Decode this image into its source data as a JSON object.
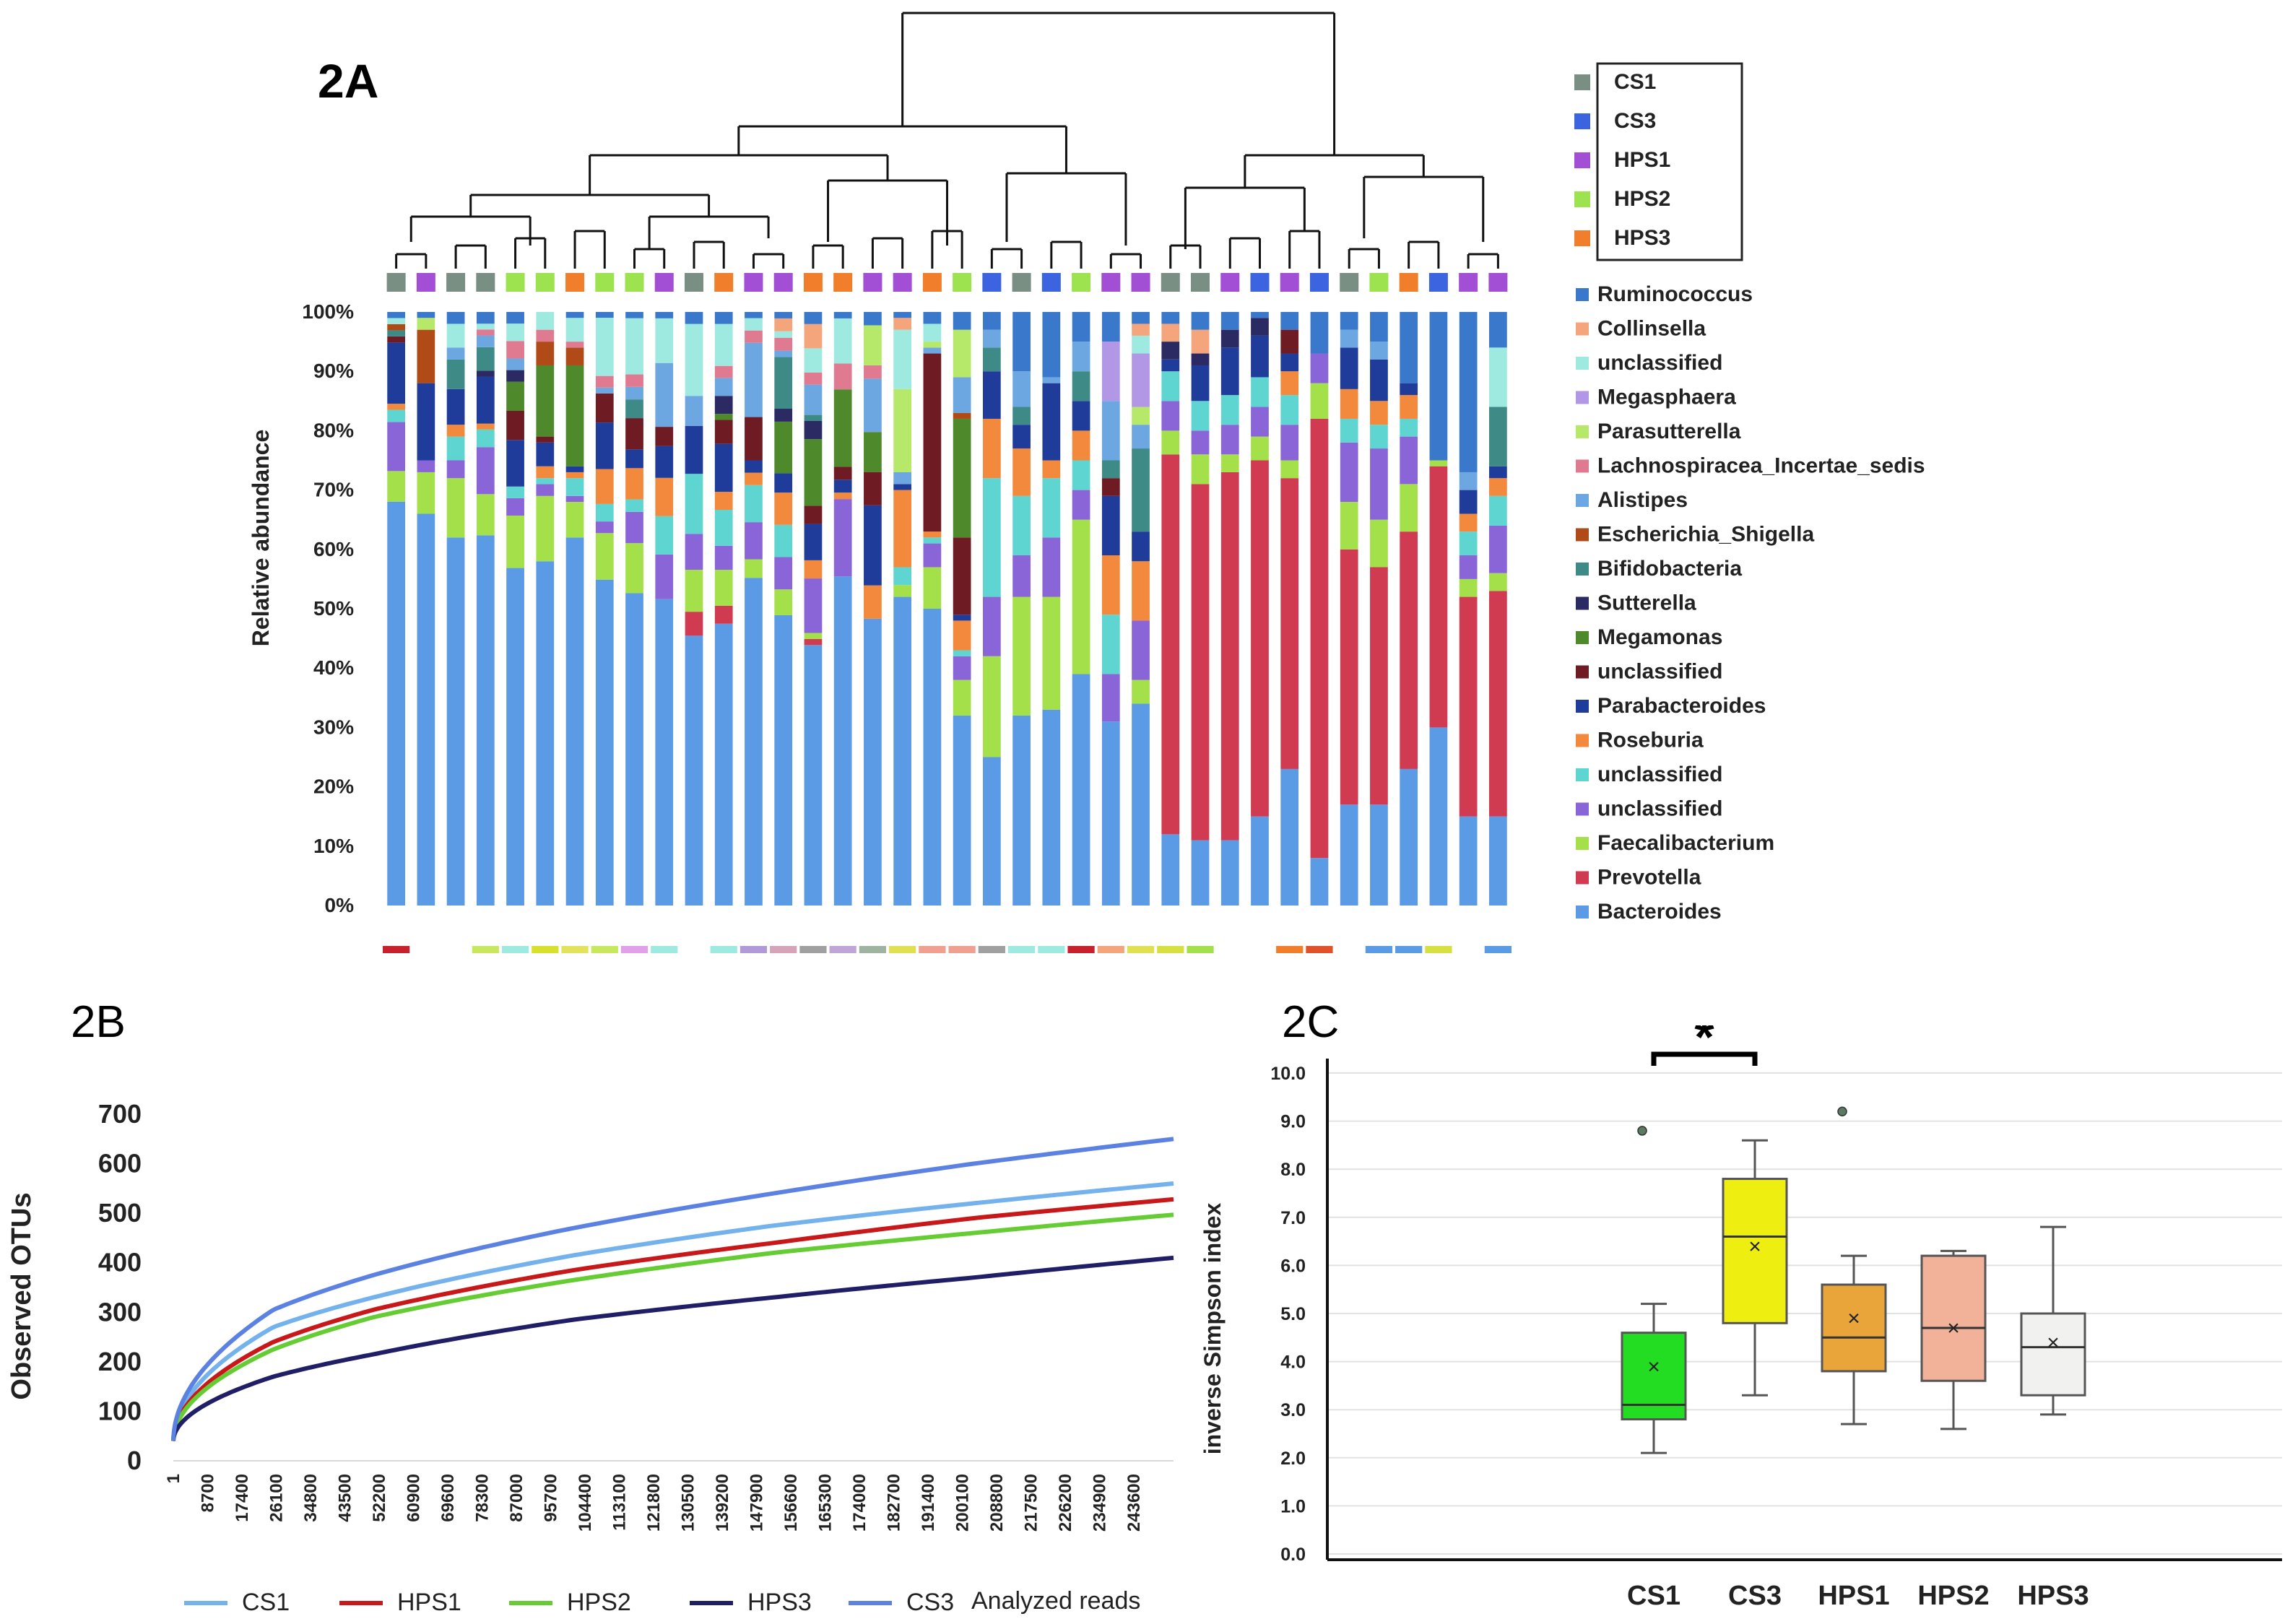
{
  "panels": {
    "a": "2A",
    "b": "2B",
    "c": "2C"
  },
  "chart_data": [
    {
      "type": "bar",
      "stacked": true,
      "title": "2A",
      "ylabel": "Relative abundance",
      "yticks": [
        "0%",
        "10%",
        "20%",
        "30%",
        "40%",
        "50%",
        "60%",
        "70%",
        "80%",
        "90%",
        "100%"
      ],
      "ylim": [
        0,
        100
      ],
      "groups": [
        {
          "name": "CS1",
          "color": "#7a8f83"
        },
        {
          "name": "CS3",
          "color": "#3c64e0"
        },
        {
          "name": "HPS1",
          "color": "#a24fd6"
        },
        {
          "name": "HPS2",
          "color": "#9de24f"
        },
        {
          "name": "HPS3",
          "color": "#f07e2a"
        }
      ],
      "taxa": [
        {
          "name": "Bacteroides",
          "color": "#5b9be6"
        },
        {
          "name": "Prevotella",
          "color": "#d03b52"
        },
        {
          "name": "Faecalibacterium",
          "color": "#a4e04a"
        },
        {
          "name": "unclassified",
          "color": "#8a65d8"
        },
        {
          "name": "unclassified",
          "color": "#5fd5d2"
        },
        {
          "name": "Roseburia",
          "color": "#f2893c"
        },
        {
          "name": "Parabacteroides",
          "color": "#1f3c9a"
        },
        {
          "name": "unclassified",
          "color": "#6e1b24"
        },
        {
          "name": "Megamonas",
          "color": "#4e8a2b"
        },
        {
          "name": "Sutterella",
          "color": "#2b2a63"
        },
        {
          "name": "Bifidobacteria",
          "color": "#3d8a86"
        },
        {
          "name": "Escherichia_Shigella",
          "color": "#b04a16"
        },
        {
          "name": "Alistipes",
          "color": "#6ca7e2"
        },
        {
          "name": "Lachnospiracea_Incertae_sedis",
          "color": "#e07a90"
        },
        {
          "name": "Parasutterella",
          "color": "#b6e86a"
        },
        {
          "name": "Megasphaera",
          "color": "#b197e6"
        },
        {
          "name": "unclassified",
          "color": "#9ee9e0"
        },
        {
          "name": "Collinsella",
          "color": "#f5a57c"
        },
        {
          "name": "Ruminococcus",
          "color": "#3a78cc"
        }
      ],
      "sample_groups": [
        0,
        2,
        0,
        0,
        3,
        3,
        4,
        3,
        3,
        2,
        0,
        4,
        2,
        2,
        4,
        4,
        2,
        2,
        4,
        3,
        1,
        0,
        1,
        3,
        2,
        2,
        0,
        0,
        2,
        1,
        2,
        1,
        0,
        3,
        4,
        1,
        2,
        2
      ],
      "sample_values": [
        [
          66,
          0,
          5,
          8,
          2,
          1,
          10,
          1,
          0,
          0,
          1,
          1,
          0,
          0,
          0,
          0,
          1,
          0,
          1
        ],
        [
          66,
          0,
          7,
          2,
          0,
          0,
          13,
          0,
          0,
          0,
          0,
          9,
          0,
          0,
          2,
          0,
          0,
          0,
          1
        ],
        [
          62,
          0,
          10,
          3,
          4,
          2,
          6,
          0,
          0,
          0,
          5,
          0,
          2,
          0,
          0,
          0,
          4,
          0,
          2
        ],
        [
          63,
          0,
          7,
          8,
          3,
          1,
          8,
          0,
          0,
          1,
          4,
          0,
          2,
          1,
          0,
          0,
          1,
          0,
          2
        ],
        [
          58,
          0,
          9,
          3,
          2,
          0,
          8,
          5,
          5,
          2,
          0,
          0,
          2,
          3,
          0,
          0,
          3,
          0,
          2
        ],
        [
          58,
          0,
          11,
          2,
          1,
          2,
          4,
          1,
          12,
          0,
          0,
          4,
          0,
          2,
          0,
          0,
          3,
          0,
          0
        ],
        [
          62,
          0,
          6,
          1,
          3,
          1,
          1,
          0,
          17,
          0,
          0,
          3,
          0,
          1,
          0,
          0,
          4,
          0,
          1
        ],
        [
          56,
          0,
          8,
          2,
          3,
          6,
          8,
          5,
          0,
          0,
          0,
          0,
          1,
          2,
          0,
          0,
          10,
          0,
          1
        ],
        [
          50,
          0,
          8,
          5,
          2,
          5,
          3,
          5,
          0,
          0,
          3,
          0,
          2,
          2,
          0,
          0,
          9,
          0,
          1
        ],
        [
          48,
          0,
          0,
          7,
          6,
          6,
          5,
          3,
          0,
          0,
          0,
          0,
          10,
          0,
          0,
          0,
          7,
          0,
          1
        ],
        [
          45,
          4,
          7,
          6,
          10,
          0,
          8,
          0,
          0,
          0,
          0,
          0,
          5,
          0,
          0,
          0,
          12,
          0,
          2
        ],
        [
          47,
          3,
          6,
          4,
          6,
          3,
          8,
          4,
          1,
          3,
          0,
          0,
          3,
          2,
          0,
          0,
          7,
          0,
          2
        ],
        [
          53,
          0,
          3,
          6,
          6,
          2,
          2,
          7,
          0,
          0,
          0,
          0,
          12,
          2,
          0,
          0,
          2,
          0,
          1
        ],
        [
          45,
          0,
          4,
          5,
          5,
          5,
          3,
          0,
          8,
          2,
          8,
          0,
          1,
          2,
          0,
          0,
          1,
          2,
          1
        ],
        [
          43,
          1,
          1,
          9,
          0,
          3,
          6,
          3,
          11,
          3,
          1,
          0,
          5,
          2,
          0,
          0,
          4,
          4,
          2
        ],
        [
          51,
          0,
          0,
          12,
          0,
          1,
          2,
          2,
          12,
          0,
          0,
          0,
          0,
          4,
          0,
          0,
          7,
          0,
          1
        ],
        [
          43,
          0,
          0,
          0,
          0,
          5,
          12,
          5,
          6,
          0,
          0,
          0,
          8,
          2,
          6,
          0,
          0,
          0,
          2
        ],
        [
          52,
          0,
          2,
          0,
          3,
          13,
          1,
          0,
          0,
          0,
          0,
          0,
          2,
          0,
          14,
          0,
          10,
          2,
          1
        ],
        [
          50,
          0,
          7,
          4,
          1,
          1,
          0,
          30,
          0,
          0,
          0,
          0,
          1,
          0,
          1,
          0,
          3,
          0,
          2
        ],
        [
          32,
          0,
          6,
          4,
          1,
          5,
          1,
          13,
          20,
          0,
          0,
          1,
          6,
          0,
          8,
          0,
          0,
          0,
          3
        ],
        [
          25,
          0,
          17,
          10,
          20,
          10,
          8,
          0,
          0,
          0,
          4,
          0,
          3,
          0,
          0,
          0,
          0,
          0,
          3
        ],
        [
          32,
          0,
          20,
          7,
          10,
          8,
          4,
          0,
          0,
          0,
          3,
          0,
          6,
          0,
          0,
          0,
          0,
          0,
          10
        ],
        [
          33,
          0,
          19,
          10,
          10,
          3,
          13,
          0,
          0,
          0,
          0,
          0,
          1,
          0,
          0,
          0,
          0,
          0,
          11
        ],
        [
          39,
          0,
          26,
          5,
          5,
          5,
          5,
          0,
          0,
          0,
          5,
          0,
          5,
          0,
          0,
          0,
          0,
          0,
          5
        ],
        [
          31,
          0,
          0,
          8,
          10,
          10,
          10,
          3,
          0,
          0,
          3,
          0,
          10,
          0,
          0,
          10,
          0,
          0,
          5
        ],
        [
          34,
          0,
          4,
          10,
          0,
          10,
          5,
          0,
          0,
          0,
          14,
          0,
          4,
          0,
          3,
          9,
          3,
          2,
          2
        ],
        [
          12,
          64,
          4,
          5,
          5,
          0,
          2,
          0,
          0,
          3,
          0,
          0,
          0,
          0,
          0,
          0,
          0,
          3,
          2
        ],
        [
          11,
          60,
          5,
          4,
          5,
          0,
          6,
          0,
          0,
          2,
          0,
          0,
          0,
          0,
          0,
          0,
          0,
          4,
          3
        ],
        [
          11,
          62,
          3,
          5,
          5,
          0,
          8,
          0,
          0,
          3,
          0,
          0,
          0,
          0,
          0,
          0,
          0,
          0,
          3
        ],
        [
          15,
          60,
          4,
          5,
          5,
          0,
          7,
          0,
          0,
          3,
          0,
          0,
          0,
          0,
          0,
          0,
          0,
          0,
          1
        ],
        [
          23,
          49,
          3,
          6,
          5,
          4,
          3,
          4,
          0,
          0,
          0,
          0,
          0,
          0,
          0,
          0,
          0,
          0,
          3
        ],
        [
          8,
          74,
          6,
          5,
          0,
          0,
          0,
          0,
          0,
          0,
          0,
          0,
          0,
          0,
          0,
          0,
          0,
          0,
          7
        ],
        [
          17,
          43,
          8,
          10,
          4,
          5,
          7,
          0,
          0,
          0,
          0,
          0,
          3,
          0,
          0,
          0,
          0,
          0,
          3
        ],
        [
          17,
          40,
          8,
          12,
          4,
          4,
          7,
          0,
          0,
          0,
          0,
          0,
          3,
          0,
          0,
          0,
          0,
          0,
          5
        ],
        [
          23,
          40,
          8,
          8,
          3,
          4,
          2,
          0,
          0,
          0,
          0,
          0,
          0,
          0,
          0,
          0,
          0,
          0,
          12
        ],
        [
          30,
          44,
          1,
          0,
          0,
          0,
          0,
          0,
          0,
          0,
          0,
          0,
          0,
          0,
          0,
          0,
          0,
          0,
          25
        ],
        [
          15,
          37,
          3,
          4,
          4,
          3,
          4,
          0,
          0,
          0,
          0,
          0,
          3,
          0,
          0,
          0,
          0,
          0,
          27
        ],
        [
          15,
          38,
          3,
          8,
          5,
          3,
          2,
          0,
          0,
          0,
          10,
          0,
          0,
          0,
          0,
          0,
          10,
          0,
          6
        ]
      ]
    },
    {
      "type": "line",
      "title": "2B",
      "xlabel": "Analyzed reads",
      "ylabel": "Observed OTUs",
      "ylim": [
        0,
        700
      ],
      "yticks": [
        0,
        100,
        200,
        300,
        400,
        500,
        600,
        700
      ],
      "xticks": [
        "1",
        "8700",
        "17400",
        "26100",
        "34800",
        "43500",
        "52200",
        "60900",
        "69600",
        "78300",
        "87000",
        "95700",
        "104400",
        "113100",
        "121800",
        "130500",
        "139200",
        "147900",
        "156600",
        "165300",
        "174000",
        "182700",
        "191400",
        "200100",
        "208800",
        "217500",
        "226200",
        "234900",
        "243600"
      ],
      "xlim": [
        1,
        250000
      ],
      "series": [
        {
          "name": "CS1",
          "color": "#73b2ec",
          "values": [
            [
              1,
              40
            ],
            [
              25000,
              270
            ],
            [
              50000,
              330
            ],
            [
              100000,
              415
            ],
            [
              150000,
              475
            ],
            [
              200000,
              520
            ],
            [
              250000,
              560
            ]
          ]
        },
        {
          "name": "HPS1",
          "color": "#c8181a",
          "values": [
            [
              1,
              40
            ],
            [
              25000,
              240
            ],
            [
              50000,
              305
            ],
            [
              100000,
              385
            ],
            [
              150000,
              440
            ],
            [
              200000,
              490
            ],
            [
              250000,
              528
            ]
          ]
        },
        {
          "name": "HPS2",
          "color": "#66cc33",
          "values": [
            [
              1,
              40
            ],
            [
              25000,
              225
            ],
            [
              50000,
              290
            ],
            [
              100000,
              365
            ],
            [
              150000,
              420
            ],
            [
              200000,
              460
            ],
            [
              250000,
              497
            ]
          ]
        },
        {
          "name": "HPS3",
          "color": "#1f1e66",
          "values": [
            [
              1,
              40
            ],
            [
              25000,
              170
            ],
            [
              50000,
              215
            ],
            [
              100000,
              285
            ],
            [
              150000,
              330
            ],
            [
              200000,
              370
            ],
            [
              250000,
              410
            ]
          ]
        },
        {
          "name": "CS3",
          "color": "#5b82e3",
          "values": [
            [
              1,
              40
            ],
            [
              25000,
              305
            ],
            [
              50000,
              375
            ],
            [
              100000,
              470
            ],
            [
              150000,
              540
            ],
            [
              200000,
              600
            ],
            [
              250000,
              650
            ]
          ]
        }
      ]
    },
    {
      "type": "box",
      "title": "2C",
      "ylabel": "inverse Simpson index",
      "ylim": [
        0,
        10
      ],
      "yticks": [
        "0.0",
        "1.0",
        "2.0",
        "3.0",
        "4.0",
        "5.0",
        "6.0",
        "7.0",
        "8.0",
        "9.0",
        "10.0"
      ],
      "significance": "*",
      "categories": [
        "CS1",
        "CS3",
        "HPS1",
        "HPS2",
        "HPS3"
      ],
      "boxes": [
        {
          "name": "CS1",
          "color": "#22dd22",
          "min": 2.1,
          "q1": 2.8,
          "median": 3.1,
          "q3": 4.6,
          "max": 5.2,
          "mean": 3.9,
          "outliers": [
            8.8
          ]
        },
        {
          "name": "CS3",
          "color": "#eeee11",
          "min": 3.3,
          "q1": 4.8,
          "median": 6.6,
          "q3": 7.8,
          "max": 8.6,
          "mean": 6.4,
          "outliers": []
        },
        {
          "name": "HPS1",
          "color": "#e9a43a",
          "min": 2.7,
          "q1": 3.8,
          "median": 4.5,
          "q3": 5.6,
          "max": 6.2,
          "mean": 4.9,
          "outliers": [
            9.2
          ]
        },
        {
          "name": "HPS2",
          "color": "#f2b29a",
          "min": 2.6,
          "q1": 3.6,
          "median": 4.7,
          "q3": 6.2,
          "max": 6.3,
          "mean": 4.7,
          "outliers": []
        },
        {
          "name": "HPS3",
          "color": "#f1f1ef",
          "min": 2.9,
          "q1": 3.3,
          "median": 4.3,
          "q3": 5.0,
          "max": 6.8,
          "mean": 4.4,
          "outliers": []
        }
      ]
    }
  ]
}
